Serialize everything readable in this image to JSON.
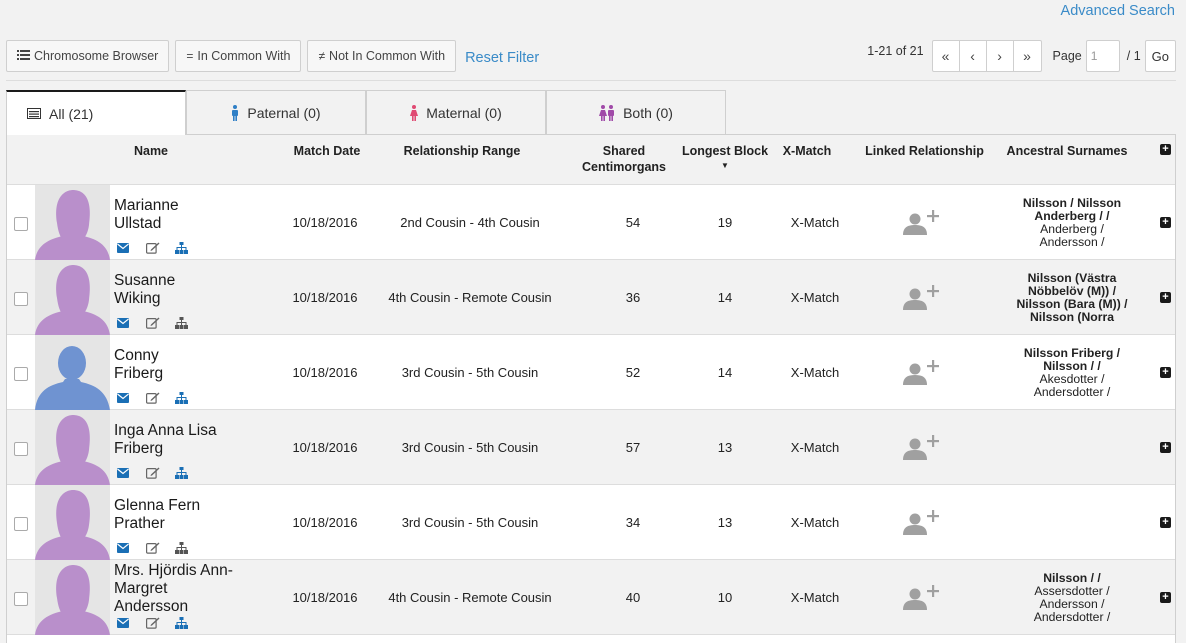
{
  "header": {
    "advanced_search": "Advanced Search"
  },
  "toolbar": {
    "chromosome_browser": "Chromosome Browser",
    "in_common_with": "In Common With",
    "not_in_common_with": "Not In Common With",
    "reset_filter": "Reset Filter"
  },
  "pager": {
    "count": "1-21 of 21",
    "first": "«",
    "prev": "‹",
    "next": "›",
    "last": "»",
    "page_label": "Page",
    "page_value": "1",
    "total": "/ 1",
    "go": "Go"
  },
  "tabs": [
    {
      "label": "All (21)"
    },
    {
      "label": "Paternal (0)"
    },
    {
      "label": "Maternal (0)"
    },
    {
      "label": "Both (0)"
    }
  ],
  "columns": {
    "name": "Name",
    "match_date": "Match Date",
    "relationship_range": "Relationship Range",
    "shared_cm_1": "Shared",
    "shared_cm_2": "Centimorgans",
    "longest_block": "Longest Block",
    "x_match": "X-Match",
    "linked_relationship": "Linked Relationship",
    "ancestral_surnames": "Ancestral Surnames"
  },
  "rows": [
    {
      "name_1": "Marianne",
      "name_2": "Ullstad",
      "name_3": "",
      "date": "10/18/2016",
      "relationship": "2nd Cousin - 4th Cousin",
      "cm": "54",
      "block": "19",
      "xmatch": "X-Match",
      "gender": "female",
      "tree_color": "#1a6fb5",
      "surnames": [
        "Nilsson / Nilsson",
        "Anderberg / /",
        "Anderberg /",
        "Andersson /"
      ],
      "surnames_bold": [
        true,
        true,
        false,
        false
      ]
    },
    {
      "name_1": "Susanne",
      "name_2": "Wiking",
      "name_3": "",
      "date": "10/18/2016",
      "relationship": "4th Cousin - Remote Cousin",
      "cm": "36",
      "block": "14",
      "xmatch": "X-Match",
      "gender": "female",
      "tree_color": "#555555",
      "surnames": [
        "Nilsson (Västra",
        "Nöbbelöv (M)) /",
        "Nilsson (Bara (M)) /",
        "Nilsson (Norra"
      ],
      "surnames_bold": [
        true,
        true,
        true,
        true
      ]
    },
    {
      "name_1": "Conny",
      "name_2": "Friberg",
      "name_3": "",
      "date": "10/18/2016",
      "relationship": "3rd Cousin - 5th Cousin",
      "cm": "52",
      "block": "14",
      "xmatch": "X-Match",
      "gender": "male",
      "tree_color": "#1a6fb5",
      "surnames": [
        "Nilsson Friberg /",
        "Nilsson / /",
        "Akesdotter /",
        "Andersdotter /"
      ],
      "surnames_bold": [
        true,
        true,
        false,
        false
      ]
    },
    {
      "name_1": "Inga Anna Lisa",
      "name_2": "Friberg",
      "name_3": "",
      "date": "10/18/2016",
      "relationship": "3rd Cousin - 5th Cousin",
      "cm": "57",
      "block": "13",
      "xmatch": "X-Match",
      "gender": "female",
      "tree_color": "#1a6fb5",
      "surnames": [],
      "surnames_bold": []
    },
    {
      "name_1": "Glenna Fern",
      "name_2": "Prather",
      "name_3": "",
      "date": "10/18/2016",
      "relationship": "3rd Cousin - 5th Cousin",
      "cm": "34",
      "block": "13",
      "xmatch": "X-Match",
      "gender": "female",
      "tree_color": "#555555",
      "surnames": [],
      "surnames_bold": []
    },
    {
      "name_1": "Mrs. Hjördis Ann-",
      "name_2": "Margret",
      "name_3": "Andersson",
      "date": "10/18/2016",
      "relationship": "4th Cousin - Remote Cousin",
      "cm": "40",
      "block": "10",
      "xmatch": "X-Match",
      "gender": "female",
      "tree_color": "#1a6fb5",
      "surnames": [
        "Nilsson / /",
        "Assersdotter /",
        "Andersson /",
        "Andersdotter /"
      ],
      "surnames_bold": [
        true,
        false,
        false,
        false
      ]
    }
  ],
  "colors": {
    "link": "#3a8bc8",
    "female_avatar": "#b98fcb",
    "male_avatar": "#6f93d1",
    "paternal": "#2f7fc6",
    "maternal": "#e04a73",
    "both": "#a04aa8"
  }
}
